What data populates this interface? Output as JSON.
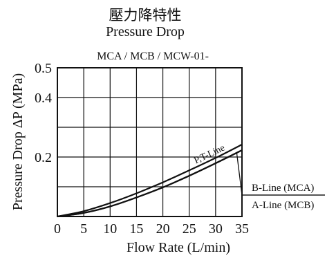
{
  "header": {
    "title_cn": "壓力降特性",
    "title_en": "Pressure Drop",
    "subtitle": "MCA / MCB / MCW-01-"
  },
  "colors": {
    "line": "#111111",
    "grid": "#111111",
    "background": "#ffffff"
  },
  "chart_data": {
    "type": "line",
    "title": "Pressure Drop",
    "xlabel": "Flow Rate (L/min)",
    "ylabel": "Pressure Drop ΔP (MPa)",
    "xlim": [
      0,
      35
    ],
    "ylim": [
      0,
      0.5
    ],
    "x_ticks": [
      0,
      5,
      10,
      15,
      20,
      25,
      30,
      35
    ],
    "y_ticks": [
      0.2,
      0.4,
      0.5
    ],
    "y_tick_labels": [
      "0.2",
      "0.4",
      "0.5"
    ],
    "grid": true,
    "series": [
      {
        "name": "P,T-Line",
        "x": [
          0,
          5,
          10,
          15,
          20,
          25,
          30,
          35
        ],
        "y": [
          0,
          0.018,
          0.045,
          0.078,
          0.115,
          0.155,
          0.197,
          0.242
        ]
      },
      {
        "name": "B-Line (MCA)",
        "x": [
          0,
          5,
          10,
          15,
          20,
          25,
          30,
          35
        ],
        "y": [
          0,
          0.012,
          0.034,
          0.064,
          0.098,
          0.137,
          0.179,
          0.223
        ]
      },
      {
        "name": "A-Line (MCB)",
        "x": [
          0,
          5,
          10,
          15,
          20,
          25,
          30,
          35
        ],
        "y": [
          0,
          0.012,
          0.034,
          0.064,
          0.098,
          0.137,
          0.179,
          0.223
        ]
      }
    ],
    "annotations": {
      "pt_label": "P,T-Line",
      "b_label": "B-Line (MCA)",
      "a_label": "A-Line (MCB)"
    }
  }
}
